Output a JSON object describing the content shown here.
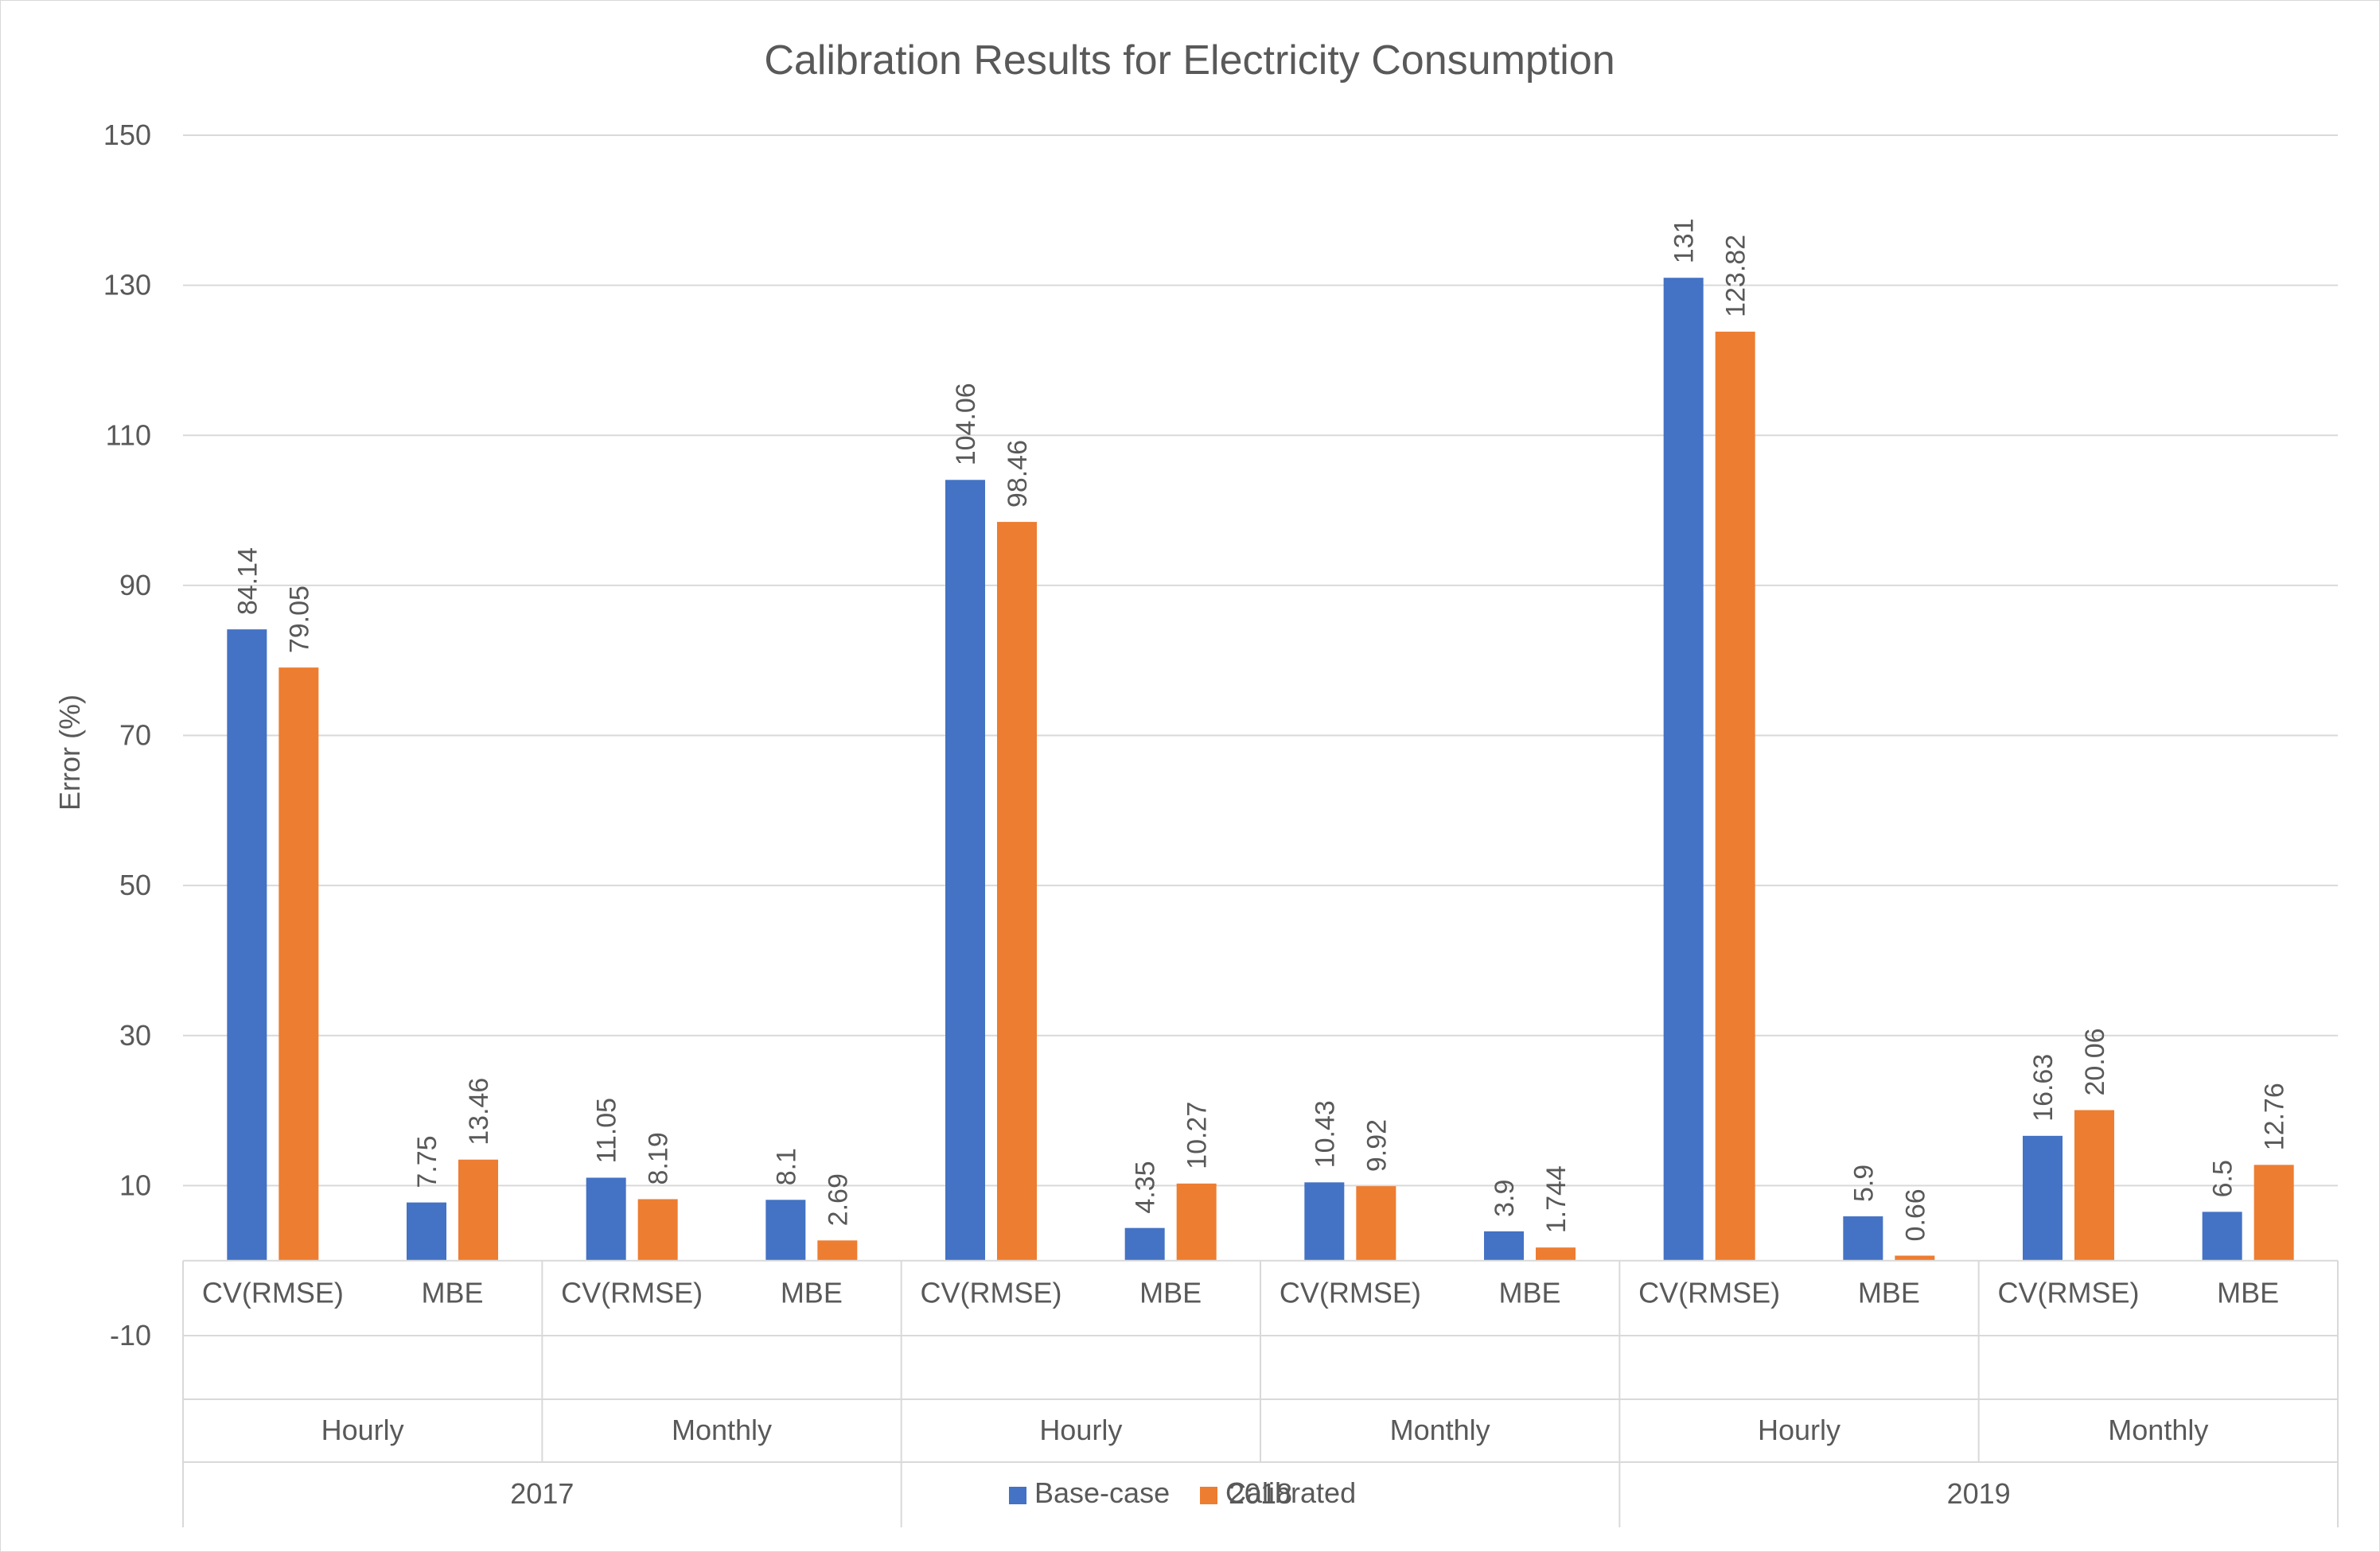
{
  "chart_data": {
    "type": "bar",
    "title": "Calibration Results for Electricity Consumption",
    "xlabel": "",
    "ylabel": "Error (%)",
    "ylim": [
      -10,
      150
    ],
    "yticks": [
      -10,
      10,
      30,
      50,
      70,
      90,
      110,
      130,
      150
    ],
    "grid": true,
    "legend_position": "bottom",
    "categories": [
      "2017 Hourly CV(RMSE)",
      "2017 Hourly MBE",
      "2017 Monthly CV(RMSE)",
      "2017 Monthly MBE",
      "2018 Hourly CV(RMSE)",
      "2018 Hourly MBE",
      "2018 Monthly CV(RMSE)",
      "2018 Monthly MBE",
      "2019 Hourly CV(RMSE)",
      "2019 Hourly MBE",
      "2019 Monthly CV(RMSE)",
      "2019 Monthly MBE"
    ],
    "category_levels": {
      "metric": [
        "CV(RMSE)",
        "MBE",
        "CV(RMSE)",
        "MBE",
        "CV(RMSE)",
        "MBE",
        "CV(RMSE)",
        "MBE",
        "CV(RMSE)",
        "MBE",
        "CV(RMSE)",
        "MBE"
      ],
      "interval": [
        "Hourly",
        "Monthly",
        "Hourly",
        "Monthly",
        "Hourly",
        "Monthly"
      ],
      "year": [
        "2017",
        "2018",
        "2019"
      ]
    },
    "series": [
      {
        "name": "Base-case",
        "color": "#4472C4",
        "values": [
          84.14,
          7.75,
          11.05,
          8.1,
          104.06,
          4.35,
          10.43,
          3.9,
          131,
          5.9,
          16.63,
          6.5
        ],
        "labels": [
          "84.14",
          "7.75",
          "11.05",
          "8.1",
          "104.06",
          "4.35",
          "10.43",
          "3.9",
          "131",
          "5.9",
          "16.63",
          "6.5"
        ]
      },
      {
        "name": "Calibrated",
        "color": "#ED7D31",
        "values": [
          79.05,
          13.46,
          8.19,
          2.69,
          98.46,
          10.27,
          9.92,
          1.744,
          123.82,
          0.66,
          20.06,
          12.76
        ],
        "labels": [
          "79.05",
          "13.46",
          "8.19",
          "2.69",
          "98.46",
          "10.27",
          "9.92",
          "1.744",
          "123.82",
          "0.66",
          "20.06",
          "12.76"
        ]
      }
    ]
  }
}
